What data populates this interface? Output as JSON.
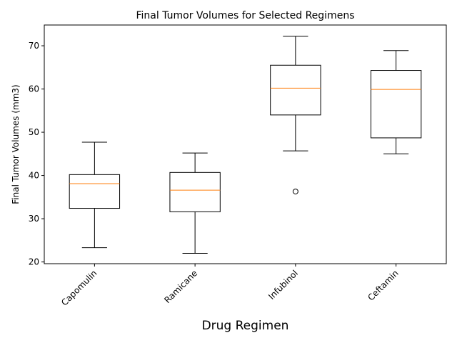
{
  "chart_data": {
    "type": "box",
    "title": "Final Tumor Volumes for Selected Regimens",
    "xlabel": "Drug Regimen",
    "ylabel": "Final Tumor Volumes (mm3)",
    "ylim": [
      19.6,
      74.8
    ],
    "yticks": [
      20,
      30,
      40,
      50,
      60,
      70
    ],
    "categories": [
      "Capomulin",
      "Ramicane",
      "Infubinol",
      "Ceftamin"
    ],
    "boxes": [
      {
        "whisker_low": 23.3,
        "q1": 32.4,
        "median": 38.1,
        "q3": 40.2,
        "whisker_high": 47.7,
        "outliers": []
      },
      {
        "whisker_low": 22.0,
        "q1": 31.6,
        "median": 36.6,
        "q3": 40.7,
        "whisker_high": 45.2,
        "outliers": []
      },
      {
        "whisker_low": 45.7,
        "q1": 54.0,
        "median": 60.2,
        "q3": 65.5,
        "whisker_high": 72.2,
        "outliers": [
          36.3
        ]
      },
      {
        "whisker_low": 45.0,
        "q1": 48.7,
        "median": 59.9,
        "q3": 64.3,
        "whisker_high": 68.9,
        "outliers": []
      }
    ],
    "grid": false,
    "colors": {
      "box": "#000000",
      "median": "#ff7f0e"
    }
  }
}
